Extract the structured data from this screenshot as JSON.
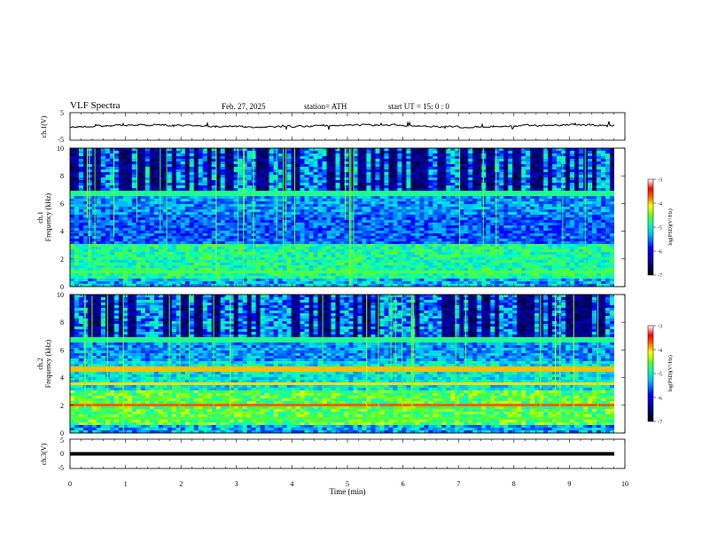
{
  "header": {
    "title": "VLF  Spectra",
    "date": "Feb. 27, 2025",
    "station": "station= ATH",
    "start": "start  UT  =    15: 0   : 0"
  },
  "chart_data": [
    {
      "type": "line",
      "name": "ch1-waveform",
      "ylabel": "ch.1(V)",
      "ylim": [
        -5,
        5
      ],
      "yticks": [
        "5",
        "-5"
      ],
      "xlim": [
        0,
        10
      ]
    },
    {
      "type": "heatmap",
      "name": "ch1-spectrogram",
      "ylabel_line1": "ch.1",
      "ylabel_line2": "Frequency  (kHz)",
      "ylim": [
        0,
        10
      ],
      "yticks": [
        "0",
        "2",
        "4",
        "6",
        "8",
        "10"
      ],
      "xlim": [
        0,
        10
      ],
      "colorbar": {
        "label": "log(PSD)(V²/Hz)",
        "range": [
          -7,
          -3
        ],
        "ticks": [
          "-3",
          "-4",
          "-5",
          "-6",
          "-7"
        ]
      }
    },
    {
      "type": "heatmap",
      "name": "ch2-spectrogram",
      "ylabel_line1": "ch.2",
      "ylabel_line2": "Frequency  (kHz)",
      "ylim": [
        0,
        10
      ],
      "yticks": [
        "0",
        "2",
        "4",
        "6",
        "8",
        "10"
      ],
      "xlim": [
        0,
        10
      ],
      "colorbar": {
        "label": "log(PSD)(V²/Hz)",
        "range": [
          -7,
          -3
        ],
        "ticks": [
          "-3",
          "-4",
          "-5",
          "-6",
          "-7"
        ]
      }
    },
    {
      "type": "line",
      "name": "ch3-waveform",
      "ylabel": "ch.3(V)",
      "ylim": [
        -5,
        5
      ],
      "yticks": [
        "5",
        "0",
        "-5"
      ],
      "xlim": [
        0,
        10
      ],
      "xlabel": "Time  (min)",
      "xticks": [
        "0",
        "1",
        "2",
        "3",
        "4",
        "5",
        "6",
        "7",
        "8",
        "9",
        "10"
      ]
    }
  ]
}
